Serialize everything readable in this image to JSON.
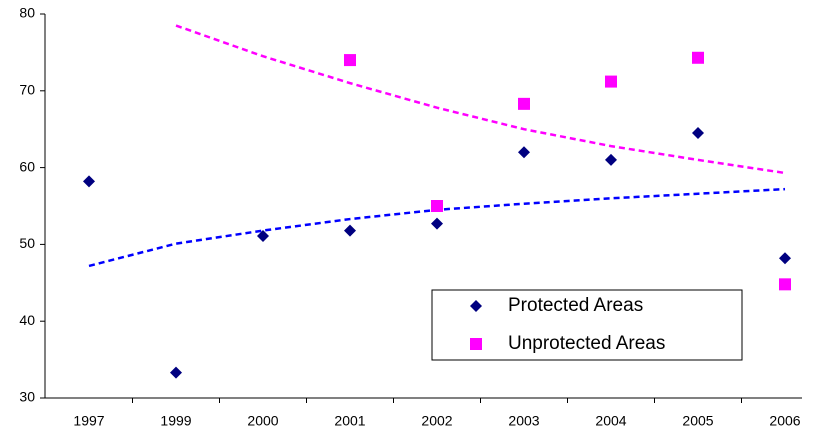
{
  "chart_data": {
    "type": "scatter",
    "categories": [
      "1997",
      "1999",
      "2000",
      "2001",
      "2002",
      "2003",
      "2004",
      "2005",
      "2006"
    ],
    "series": [
      {
        "name": "Protected Areas",
        "color": "#000080",
        "marker": "diamond",
        "values": [
          58.2,
          33.3,
          51.1,
          51.8,
          52.7,
          62.0,
          61.0,
          64.5,
          48.2
        ],
        "trend_color": "#0000ff",
        "trend": [
          47.2,
          50.1,
          51.8,
          53.3,
          54.5,
          55.3,
          56.0,
          56.6,
          57.2
        ]
      },
      {
        "name": "Unprotected Areas",
        "color": "#ff00ff",
        "marker": "square",
        "values": [
          null,
          null,
          null,
          74.0,
          55.0,
          68.3,
          71.2,
          74.3,
          44.8
        ],
        "trend_color": "#ff00ff",
        "trend": [
          null,
          78.5,
          74.5,
          71.0,
          67.8,
          65.0,
          62.8,
          61.0,
          59.3
        ]
      }
    ],
    "ylim": [
      30,
      80
    ],
    "yticks": [
      30,
      40,
      50,
      60,
      70,
      80
    ],
    "grid": false,
    "legend": "lower right"
  }
}
